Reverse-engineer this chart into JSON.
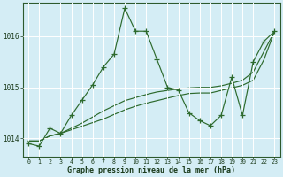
{
  "title": "Graphe pression niveau de la mer (hPa)",
  "bg_color": "#d4edf5",
  "grid_color": "#ffffff",
  "line_color": "#2d6a2d",
  "ylim": [
    1013.65,
    1016.65
  ],
  "yticks": [
    1014,
    1015,
    1016
  ],
  "hours": [
    0,
    1,
    2,
    3,
    4,
    5,
    6,
    7,
    8,
    9,
    10,
    11,
    12,
    13,
    14,
    15,
    16,
    17,
    18,
    19,
    20,
    21,
    22,
    23
  ],
  "series_main": [
    1013.9,
    1013.85,
    1014.2,
    1014.1,
    1014.45,
    1014.75,
    1015.05,
    1015.4,
    1015.65,
    1016.55,
    1016.1,
    1016.1,
    1015.55,
    1015.0,
    1014.95,
    1014.5,
    1014.35,
    1014.25,
    1014.45,
    1015.2,
    1014.45,
    1015.5,
    1015.9,
    1016.1
  ],
  "series_trend1": [
    1013.95,
    1013.95,
    1014.05,
    1014.1,
    1014.17,
    1014.24,
    1014.31,
    1014.38,
    1014.47,
    1014.56,
    1014.63,
    1014.69,
    1014.74,
    1014.79,
    1014.84,
    1014.88,
    1014.89,
    1014.89,
    1014.94,
    1014.99,
    1015.04,
    1015.14,
    1015.54,
    1016.1
  ],
  "series_trend2": [
    1013.95,
    1013.95,
    1014.05,
    1014.1,
    1014.2,
    1014.3,
    1014.42,
    1014.54,
    1014.64,
    1014.74,
    1014.8,
    1014.86,
    1014.91,
    1014.94,
    1014.97,
    1014.99,
    1015.0,
    1015.0,
    1015.03,
    1015.08,
    1015.14,
    1015.3,
    1015.7,
    1016.1
  ],
  "x_labels": [
    "0",
    "1",
    "2",
    "3",
    "4",
    "5",
    "6",
    "7",
    "8",
    "9",
    "10",
    "11",
    "12",
    "13",
    "14",
    "15",
    "16",
    "17",
    "18",
    "19",
    "20",
    "21",
    "22",
    "23"
  ]
}
